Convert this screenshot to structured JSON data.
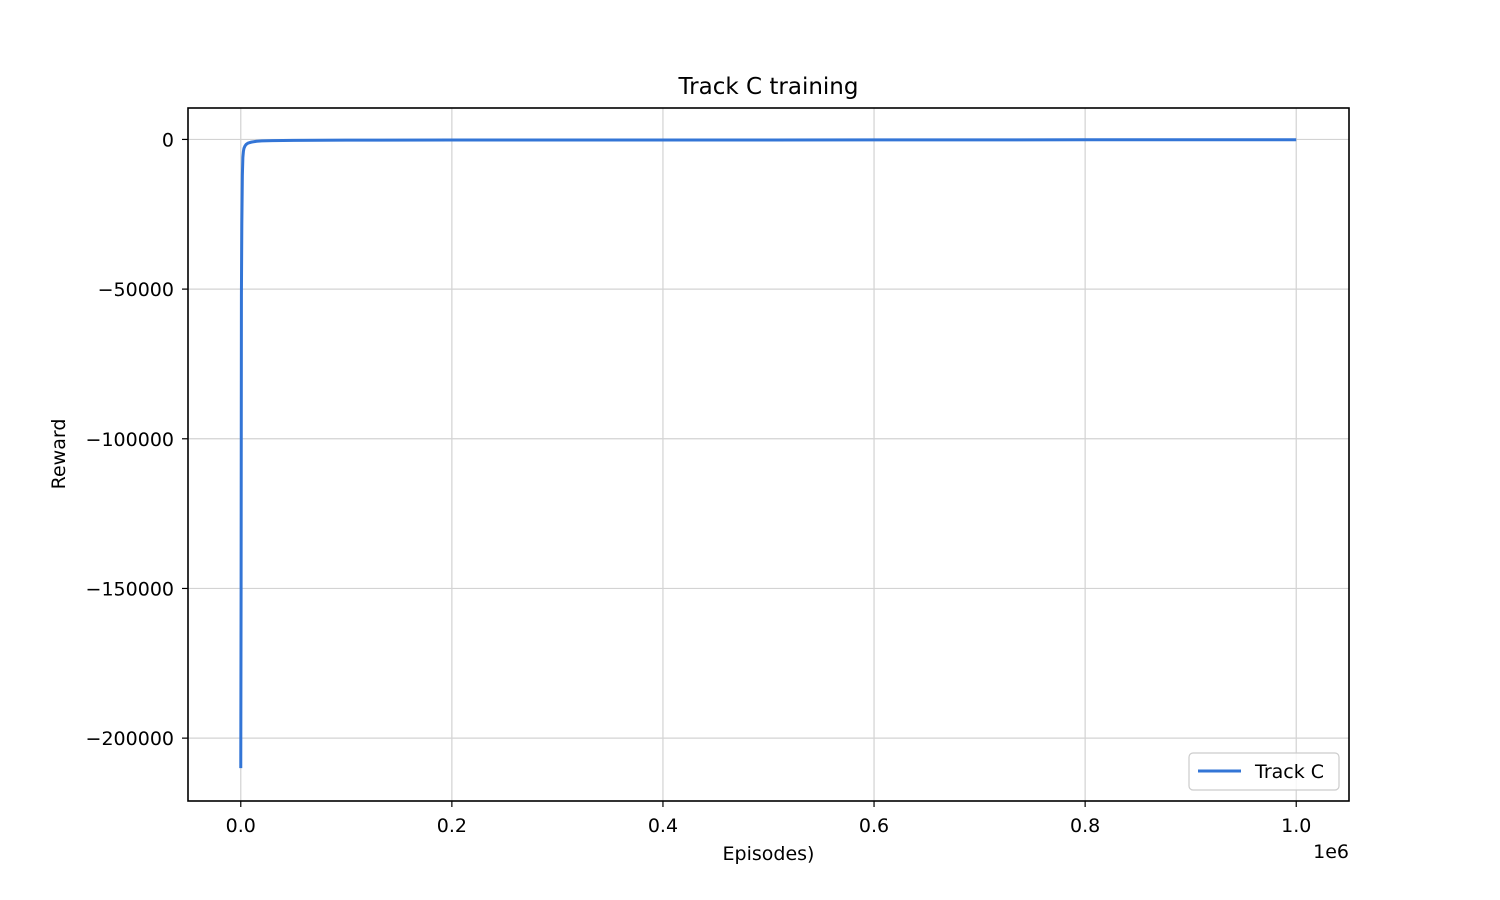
{
  "chart_data": {
    "type": "line",
    "title": "Track C training",
    "xlabel": "Episodes)",
    "ylabel": "Reward",
    "x_offset_label": "1e6",
    "xlim": [
      -50000,
      1050000
    ],
    "ylim": [
      -221000,
      10500
    ],
    "x_ticks": [
      {
        "value": 0,
        "label": "0.0"
      },
      {
        "value": 200000,
        "label": "0.2"
      },
      {
        "value": 400000,
        "label": "0.4"
      },
      {
        "value": 600000,
        "label": "0.6"
      },
      {
        "value": 800000,
        "label": "0.8"
      },
      {
        "value": 1000000,
        "label": "1.0"
      }
    ],
    "y_ticks": [
      {
        "value": 0,
        "label": "0"
      },
      {
        "value": -50000,
        "label": "−50000"
      },
      {
        "value": -100000,
        "label": "−100000"
      },
      {
        "value": -150000,
        "label": "−150000"
      },
      {
        "value": -200000,
        "label": "−200000"
      }
    ],
    "grid": true,
    "legend_position": "lower-right",
    "series": [
      {
        "name": "Track C",
        "color": "#3375d6",
        "x": [
          0,
          300,
          600,
          1000,
          1500,
          2000,
          2500,
          3000,
          4000,
          5000,
          7000,
          10000,
          15000,
          20000,
          30000,
          50000,
          100000,
          200000,
          300000,
          400000,
          500000,
          600000,
          700000,
          800000,
          900000,
          1000000
        ],
        "y": [
          -210000,
          -150000,
          -52000,
          -28000,
          -12000,
          -6000,
          -4000,
          -3000,
          -2200,
          -1700,
          -1200,
          -900,
          -600,
          -500,
          -400,
          -300,
          -250,
          -200,
          -200,
          -200,
          -180,
          -150,
          -150,
          -120,
          -100,
          -100
        ]
      }
    ]
  }
}
